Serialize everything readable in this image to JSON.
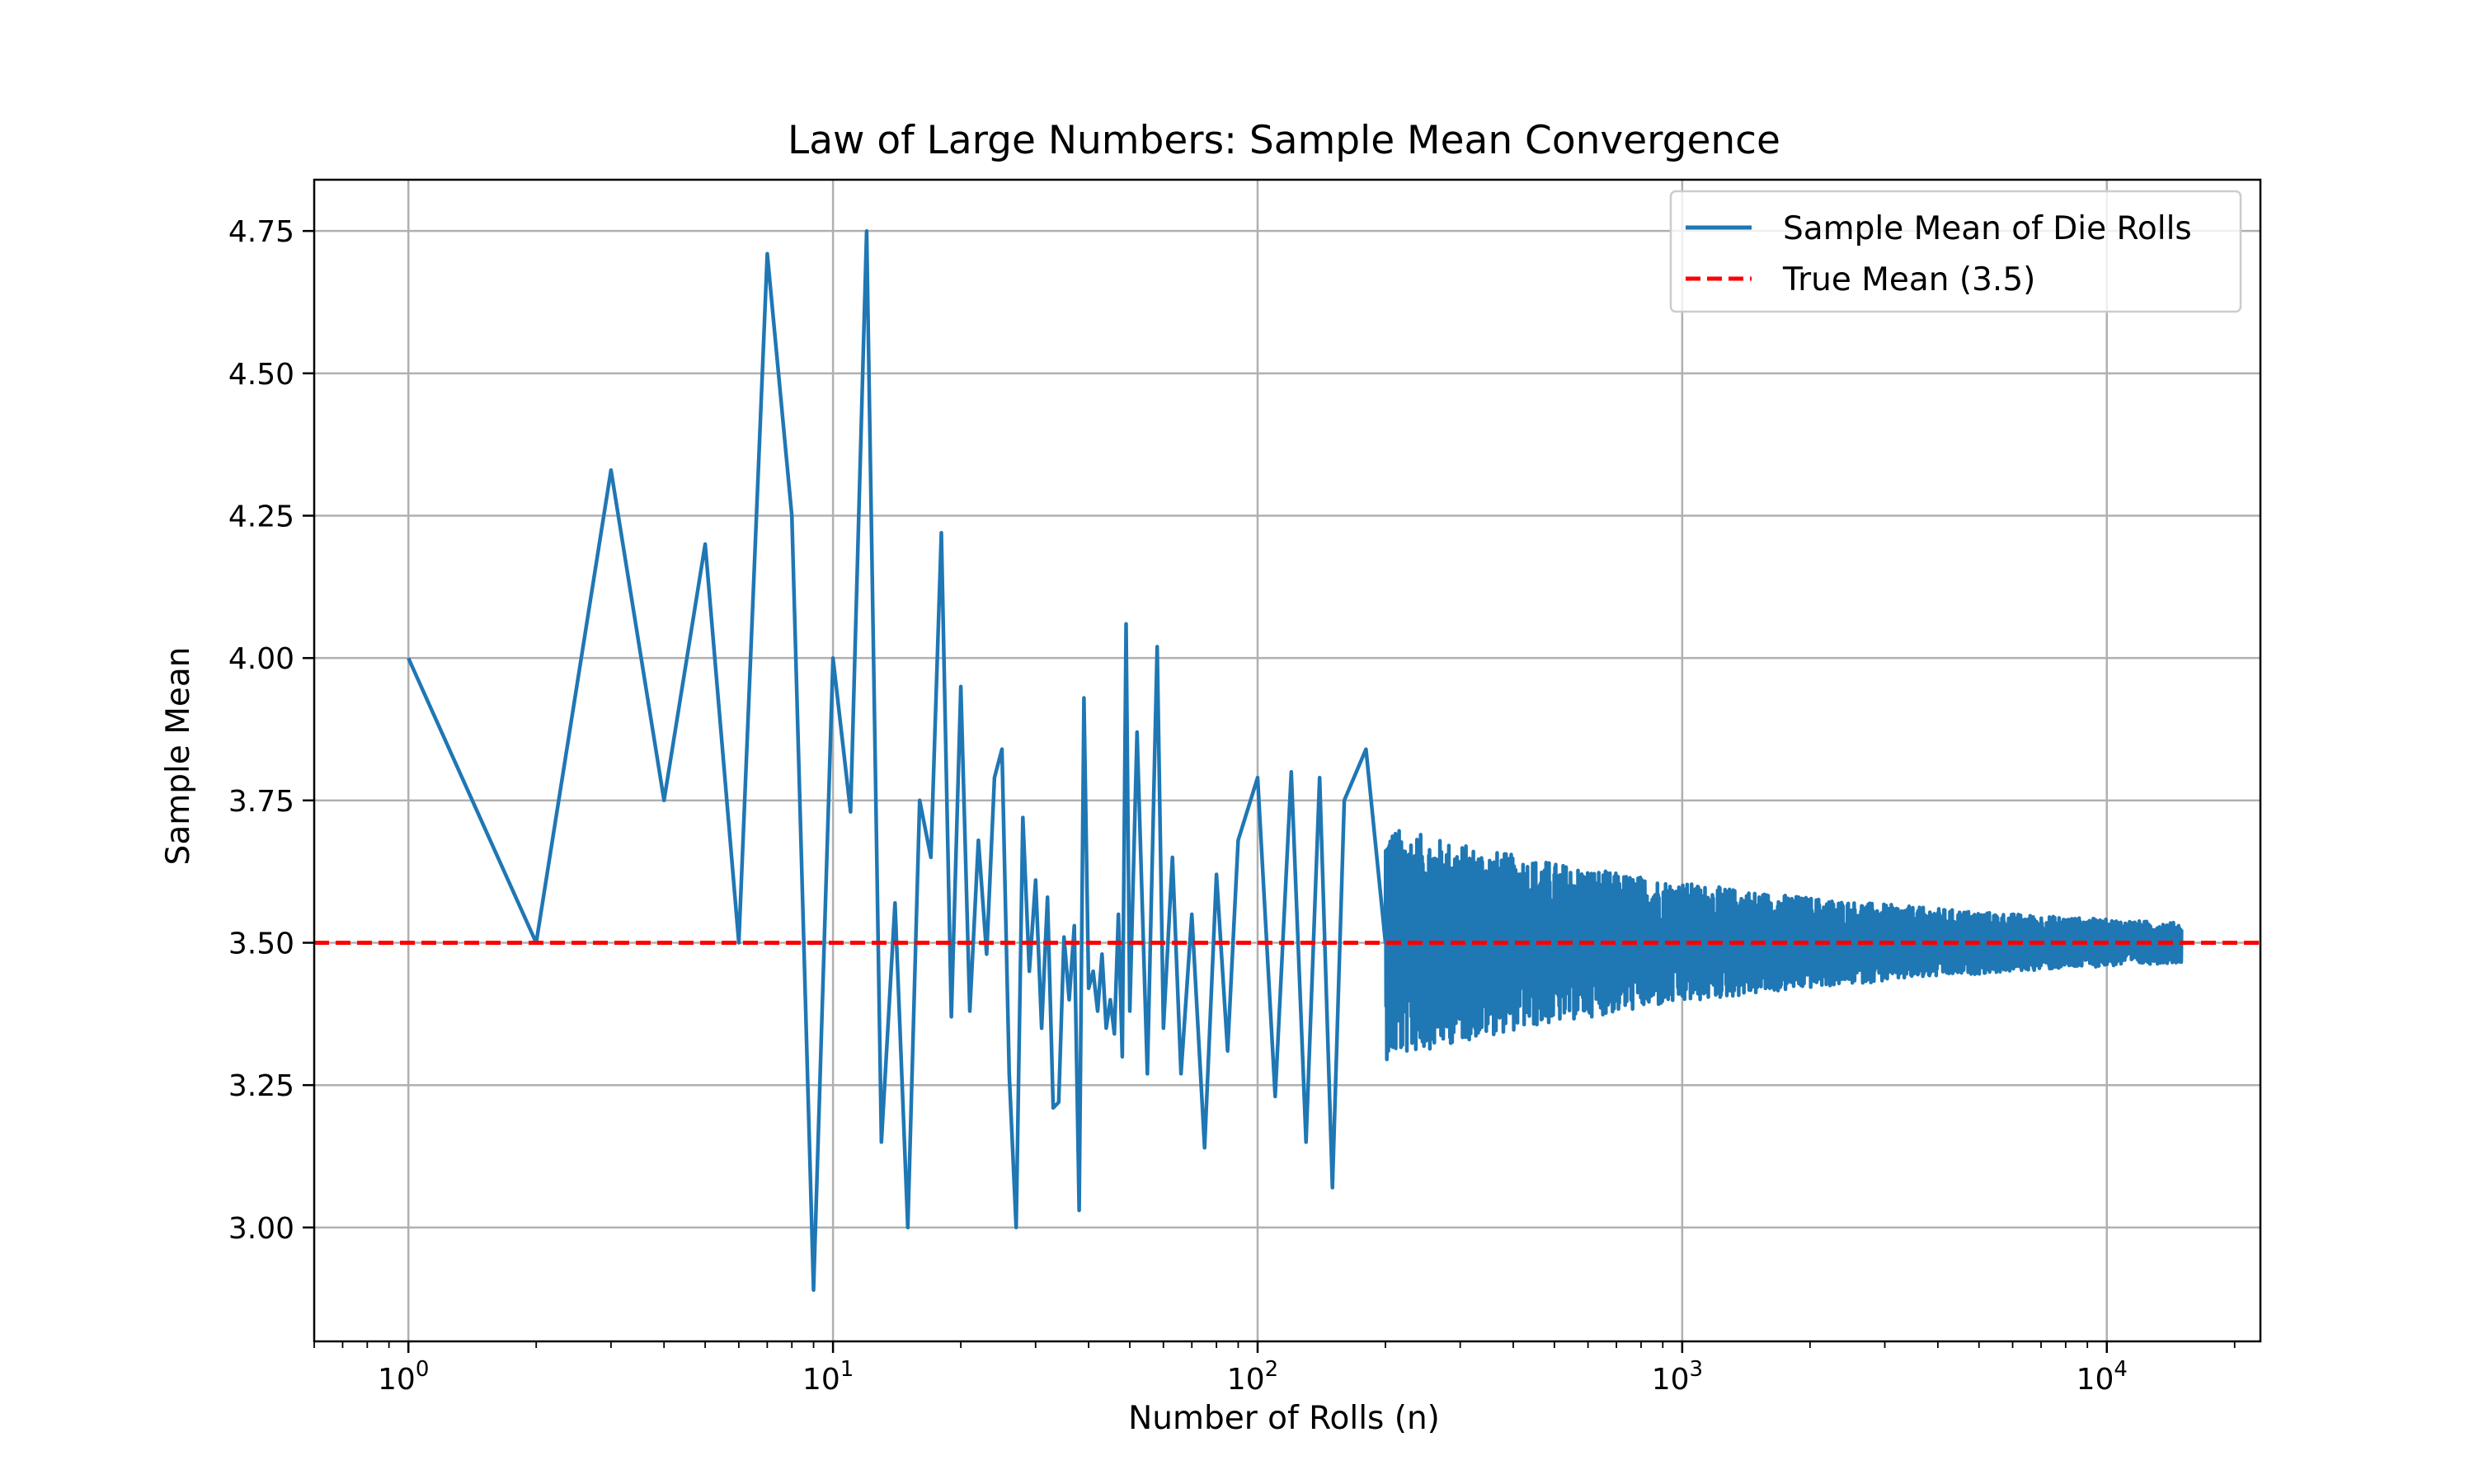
{
  "chart_data": {
    "type": "line",
    "title": "Law of Large Numbers: Sample Mean Convergence",
    "xlabel": "Number of Rolls (n)",
    "ylabel": "Sample Mean",
    "xscale": "log",
    "xlim": [
      0.6,
      23000
    ],
    "ylim": [
      2.8,
      4.84
    ],
    "x_tick_values": [
      1,
      10,
      100,
      1000,
      10000
    ],
    "x_tick_labels": [
      {
        "base": "10",
        "exp": "0"
      },
      {
        "base": "10",
        "exp": "1"
      },
      {
        "base": "10",
        "exp": "2"
      },
      {
        "base": "10",
        "exp": "3"
      },
      {
        "base": "10",
        "exp": "4"
      }
    ],
    "y_ticks": [
      3.0,
      3.25,
      3.5,
      3.75,
      4.0,
      4.25,
      4.5,
      4.75
    ],
    "y_tick_labels": [
      "3.00",
      "3.25",
      "3.50",
      "3.75",
      "4.00",
      "4.25",
      "4.50",
      "4.75"
    ],
    "grid": true,
    "legend_position": "top-right",
    "series": [
      {
        "name": "Sample Mean of Die Rolls",
        "color": "#1f77b4",
        "style": "solid",
        "x": [
          1,
          2,
          3,
          4,
          5,
          6,
          7,
          8,
          9,
          10,
          11,
          12,
          13,
          14,
          15,
          16,
          17,
          18,
          19,
          20,
          21,
          22,
          23,
          24,
          25,
          26,
          27,
          28,
          29,
          30,
          31,
          32,
          33,
          34,
          35,
          36,
          37,
          38,
          39,
          40,
          41,
          42,
          43,
          44,
          45,
          46,
          47,
          48,
          49,
          50,
          52,
          55,
          58,
          60,
          63,
          66,
          70,
          75,
          80,
          85,
          90,
          100,
          110,
          120,
          130,
          140,
          150,
          160,
          180,
          200
        ],
        "y": [
          4.0,
          3.5,
          4.33,
          3.75,
          4.2,
          3.5,
          4.71,
          4.25,
          2.89,
          4.0,
          3.73,
          4.75,
          3.15,
          3.57,
          3.0,
          3.75,
          3.65,
          4.22,
          3.37,
          3.95,
          3.38,
          3.68,
          3.48,
          3.79,
          3.84,
          3.27,
          3.0,
          3.72,
          3.45,
          3.61,
          3.35,
          3.58,
          3.21,
          3.22,
          3.51,
          3.4,
          3.53,
          3.03,
          3.93,
          3.42,
          3.45,
          3.38,
          3.48,
          3.35,
          3.4,
          3.34,
          3.55,
          3.3,
          4.06,
          3.38,
          3.87,
          3.27,
          4.02,
          3.35,
          3.65,
          3.27,
          3.55,
          3.14,
          3.62,
          3.31,
          3.68,
          3.79,
          3.23,
          3.8,
          3.15,
          3.79,
          3.07,
          3.75,
          3.84,
          3.5
        ],
        "band": {
          "x_start": 80,
          "x_end": 15000,
          "amplitude_at_start": 0.3,
          "amplitude_at_end": 0.035,
          "center": 3.5
        }
      },
      {
        "name": "True Mean (3.5)",
        "color": "#ff0000",
        "style": "dashed",
        "y": 3.5
      }
    ]
  }
}
